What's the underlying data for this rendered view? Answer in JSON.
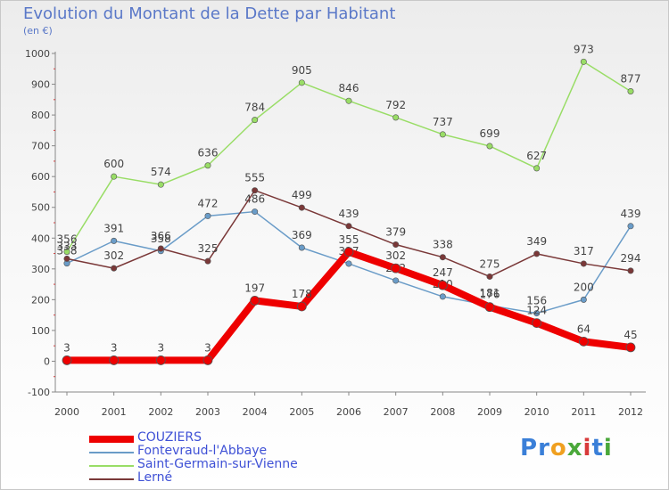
{
  "title": "Evolution du Montant de la Dette par Habitant",
  "subtitle": "(en €)",
  "logo": {
    "text": "Proxiti",
    "letters": [
      {
        "ch": "P",
        "color": "#3a7fd8"
      },
      {
        "ch": "r",
        "color": "#3a7fd8"
      },
      {
        "ch": "o",
        "color": "#f0a020"
      },
      {
        "ch": "x",
        "color": "#4aa83a"
      },
      {
        "ch": "i",
        "color": "#d83a3a"
      },
      {
        "ch": "t",
        "color": "#3a7fd8"
      },
      {
        "ch": "i",
        "color": "#4aa83a"
      }
    ]
  },
  "chart_data": {
    "type": "line",
    "title": "Evolution du Montant de la Dette par Habitant",
    "ylabel": "(en €)",
    "xlabel": "",
    "ylim": [
      -100,
      1000
    ],
    "yticks": [
      -100,
      0,
      100,
      200,
      300,
      400,
      500,
      600,
      700,
      800,
      900,
      1000
    ],
    "x": [
      "2000",
      "2001",
      "2002",
      "2003",
      "2004",
      "2005",
      "2006",
      "2007",
      "2008",
      "2009",
      "2010",
      "2011",
      "2012"
    ],
    "grid": false,
    "legend_position": "bottom-left",
    "series": [
      {
        "name": "COUZIERS",
        "color": "#ee0000",
        "values": [
          3,
          3,
          3,
          3,
          197,
          178,
          355,
          302,
          247,
          176,
          124,
          64,
          45
        ],
        "labels": [
          "3",
          "3",
          "3",
          "3",
          "197",
          "178",
          "355",
          "302",
          "247",
          "176",
          "124",
          "64",
          "45"
        ],
        "bold": true
      },
      {
        "name": "Fontevraud-l'Abbaye",
        "color": "#6a9cc8",
        "values": [
          318,
          391,
          358,
          472,
          486,
          369,
          317,
          262,
          210,
          181,
          156,
          200,
          439
        ],
        "labels": [
          "318",
          "391",
          "358",
          "472",
          "486",
          "369",
          "317",
          "262",
          "210",
          "181",
          "156",
          "200",
          "439"
        ],
        "bold": false
      },
      {
        "name": "Saint-Germain-sur-Vienne",
        "color": "#99dd66",
        "values": [
          356,
          600,
          574,
          636,
          784,
          905,
          846,
          792,
          737,
          699,
          627,
          973,
          877
        ],
        "labels": [
          "356",
          "600",
          "574",
          "636",
          "784",
          "905",
          "846",
          "792",
          "737",
          "699",
          "627",
          "973",
          "877"
        ],
        "bold": false
      },
      {
        "name": "Lerné",
        "color": "#7a3838",
        "values": [
          333,
          302,
          366,
          325,
          555,
          499,
          439,
          379,
          338,
          275,
          349,
          317,
          294
        ],
        "labels": [
          "333",
          "302",
          "366",
          "325",
          "555",
          "499",
          "439",
          "379",
          "338",
          "275",
          "349",
          "317",
          "294"
        ],
        "bold": false
      }
    ]
  }
}
